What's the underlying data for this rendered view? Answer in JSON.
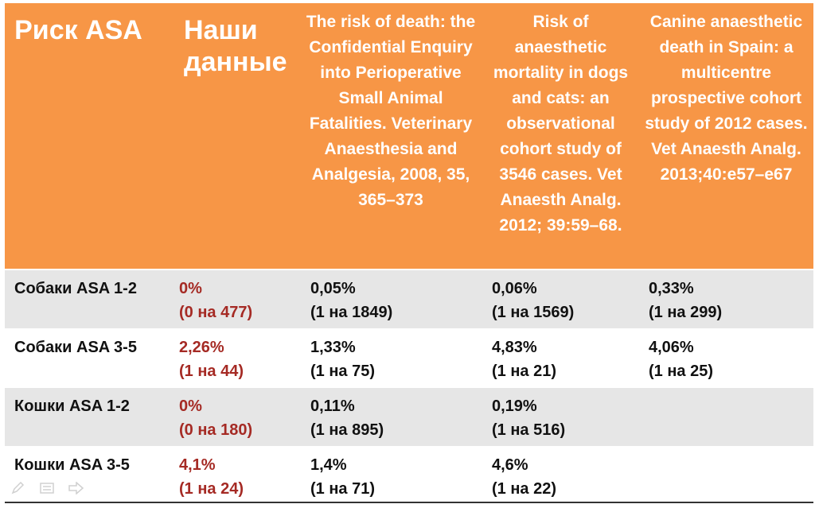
{
  "header": {
    "col1": "Риск ASA",
    "col2": "Наши данные",
    "col3": "The risk of death: the Confidential Enquiry into Perioperative Small Animal Fatalities. Veterinary Anaesthesia and Analgesia, 2008, 35, 365–373",
    "col4": "Risk of anaesthetic mortality in dogs and cats: an observational cohort study of 3546 cases. Vet Anaesth Analg. 2012; 39:59–68.",
    "col5": "Canine anaesthetic death in Spain: a multicentre prospective cohort study of 2012 cases. Vet Anaesth Analg. 2013;40:e57–e67"
  },
  "rows": [
    {
      "label": "Собаки ASA 1-2",
      "ours": {
        "pct": "0%",
        "ratio": "(0 на 477)"
      },
      "c3": {
        "pct": "0,05%",
        "ratio": "(1 на 1849)"
      },
      "c4": {
        "pct": "0,06%",
        "ratio": "(1 на 1569)"
      },
      "c5": {
        "pct": "0,33%",
        "ratio": "(1 на 299)"
      }
    },
    {
      "label": "Собаки ASA 3-5",
      "ours": {
        "pct": "2,26%",
        "ratio": "(1 на 44)"
      },
      "c3": {
        "pct": "1,33%",
        "ratio": "(1 на 75)"
      },
      "c4": {
        "pct": "4,83%",
        "ratio": "(1 на 21)"
      },
      "c5": {
        "pct": "4,06%",
        "ratio": "(1 на 25)"
      }
    },
    {
      "label": "Кошки ASA 1-2",
      "ours": {
        "pct": "0%",
        "ratio": "(0 на 180)"
      },
      "c3": {
        "pct": "0,11%",
        "ratio": "(1 на 895)"
      },
      "c4": {
        "pct": "0,19%",
        "ratio": "(1 на 516)"
      },
      "c5": {
        "pct": "",
        "ratio": ""
      }
    },
    {
      "label": "Кошки ASA 3-5",
      "ours": {
        "pct": "4,1%",
        "ratio": "(1 на 24)"
      },
      "c3": {
        "pct": "1,4%",
        "ratio": "(1 на 71)"
      },
      "c4": {
        "pct": "4,6%",
        "ratio": "(1 на 22)"
      },
      "c5": {
        "pct": "",
        "ratio": ""
      }
    }
  ],
  "colors": {
    "header_bg": "#f79646",
    "header_text": "#ffffff",
    "ours_text": "#a52a24",
    "shade_row": "#e6e6e6"
  },
  "toolbar_icons": [
    "pen-icon",
    "menu-icon",
    "arrow-right-icon"
  ]
}
